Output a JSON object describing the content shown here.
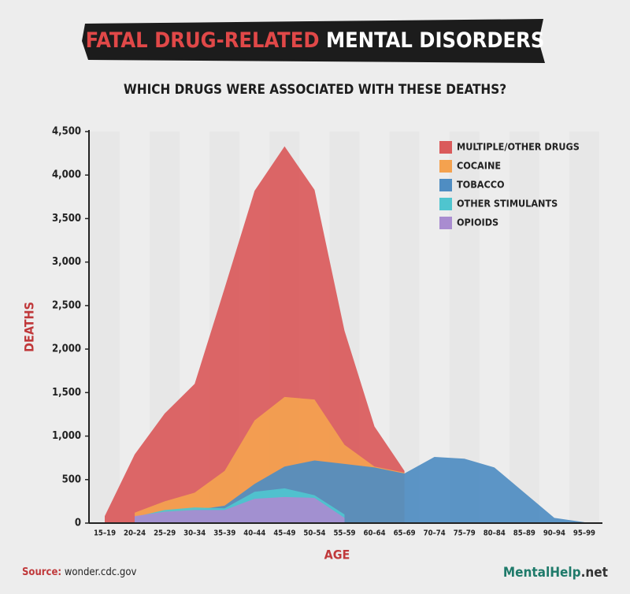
{
  "chart_data": {
    "type": "area",
    "title": {
      "highlight": "FATAL DRUG-RELATED",
      "rest": "MENTAL DISORDERS"
    },
    "subtitle": "WHICH DRUGS WERE ASSOCIATED WITH THESE DEATHS?",
    "y_label": "DEATHS",
    "x_label": "AGE",
    "source_label": "Source:",
    "source": "wonder.cdc.gov",
    "brand": {
      "name": "MentalHelp",
      "suffix": ".net"
    },
    "categories": [
      "15–19",
      "20–24",
      "25–29",
      "30–34",
      "35–39",
      "40–44",
      "45–49",
      "50–54",
      "55–59",
      "60–64",
      "65–69",
      "70–74",
      "75–79",
      "80–84",
      "85–89",
      "90–94",
      "95–99"
    ],
    "series": [
      {
        "name": "MULTIPLE/OTHER DRUGS",
        "color": "#da5a5b",
        "values": [
          80,
          790,
          1260,
          1600,
          2700,
          3820,
          4330,
          3830,
          2210,
          1110,
          600,
          null,
          null,
          null,
          null,
          null,
          null
        ]
      },
      {
        "name": "COCAINE",
        "color": "#f4a24f",
        "values": [
          null,
          120,
          250,
          350,
          600,
          1180,
          1450,
          1420,
          900,
          650,
          580,
          null,
          null,
          null,
          null,
          null,
          null
        ]
      },
      {
        "name": "TOBACCO",
        "color": "#4f8dc2",
        "values": [
          null,
          60,
          120,
          150,
          200,
          450,
          650,
          720,
          680,
          640,
          570,
          760,
          740,
          640,
          350,
          60,
          10
        ]
      },
      {
        "name": "OTHER STIMULANTS",
        "color": "#4fc5cf",
        "values": [
          null,
          70,
          150,
          180,
          170,
          360,
          400,
          320,
          100,
          null,
          null,
          null,
          null,
          null,
          null,
          null,
          null
        ]
      },
      {
        "name": "OPIOIDS",
        "color": "#a98cd0",
        "values": [
          null,
          80,
          130,
          150,
          150,
          280,
          300,
          290,
          60,
          null,
          null,
          null,
          null,
          null,
          null,
          null,
          null
        ]
      }
    ],
    "ylim": [
      0,
      4500
    ],
    "yticks": [
      0,
      500,
      {
        "value": 1000,
        "label": "1,000"
      },
      {
        "value": 1500,
        "label": "1,500"
      },
      {
        "value": 2000,
        "label": "2,000"
      },
      {
        "value": 2500,
        "label": "2,500"
      },
      {
        "value": 3000,
        "label": "3,000"
      },
      {
        "value": 3500,
        "label": "3,500"
      },
      {
        "value": 4000,
        "label": "4,000"
      },
      {
        "value": 4500,
        "label": "4,500"
      }
    ],
    "legend": "top-right"
  }
}
